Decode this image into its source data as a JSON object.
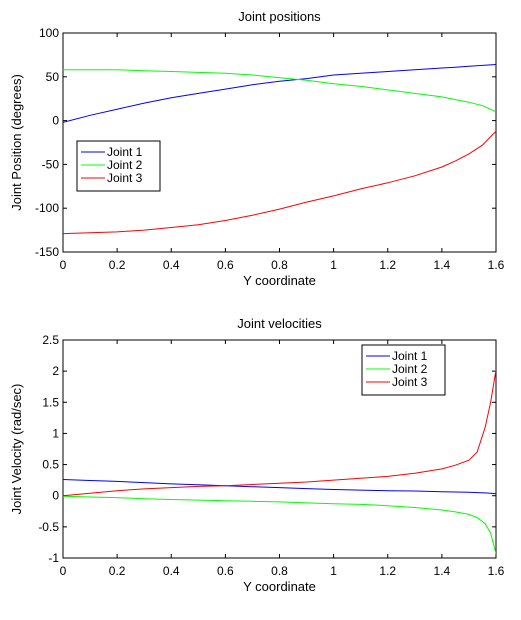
{
  "chart_data": [
    {
      "type": "line",
      "title": "Joint positions",
      "xlabel": "Y coordinate",
      "ylabel": "Joint Position (degrees)",
      "xlim": [
        0,
        1.6
      ],
      "ylim": [
        -150,
        100
      ],
      "xticks": [
        0,
        0.2,
        0.4,
        0.6,
        0.8,
        1,
        1.2,
        1.4,
        1.6
      ],
      "xtick_labels": [
        "0",
        "0.2",
        "0.4",
        "0.6",
        "0.8",
        "1",
        "1.2",
        "1.4",
        "1.6"
      ],
      "yticks": [
        -150,
        -100,
        -50,
        0,
        50,
        100
      ],
      "ytick_labels": [
        "-150",
        "-100",
        "-50",
        "0",
        "50",
        "100"
      ],
      "legend_position": "middle-left",
      "x": [
        0,
        0.1,
        0.2,
        0.3,
        0.4,
        0.5,
        0.6,
        0.7,
        0.8,
        0.9,
        1.0,
        1.1,
        1.2,
        1.3,
        1.4,
        1.45,
        1.5,
        1.55,
        1.6
      ],
      "series": [
        {
          "name": "Joint 1",
          "color": "#0000ff",
          "values": [
            -2,
            6,
            13,
            20,
            26,
            31,
            36,
            41,
            45,
            48,
            52,
            54,
            56,
            58,
            60,
            61,
            62,
            63,
            64
          ]
        },
        {
          "name": "Joint 2",
          "color": "#00ff00",
          "values": [
            58,
            58,
            58,
            57,
            56,
            55,
            54,
            52,
            49,
            46,
            42,
            39,
            35,
            31,
            27,
            24,
            21,
            17,
            10
          ]
        },
        {
          "name": "Joint 3",
          "color": "#ff0000",
          "values": [
            -129,
            -128,
            -127,
            -125,
            -122,
            -119,
            -114,
            -108,
            -101,
            -93,
            -86,
            -78,
            -71,
            -63,
            -53,
            -46,
            -38,
            -28,
            -12
          ]
        }
      ]
    },
    {
      "type": "line",
      "title": "Joint velocities",
      "xlabel": "Y coordinate",
      "ylabel": "Joint Velocity (rad/sec)",
      "xlim": [
        0,
        1.6
      ],
      "ylim": [
        -1,
        2.5
      ],
      "xticks": [
        0,
        0.2,
        0.4,
        0.6,
        0.8,
        1,
        1.2,
        1.4,
        1.6
      ],
      "xtick_labels": [
        "0",
        "0.2",
        "0.4",
        "0.6",
        "0.8",
        "1",
        "1.2",
        "1.4",
        "1.6"
      ],
      "yticks": [
        -1,
        -0.5,
        0,
        0.5,
        1,
        1.5,
        2,
        2.5
      ],
      "ytick_labels": [
        "-1",
        "-0.5",
        "0",
        "0.5",
        "1",
        "1.5",
        "2",
        "2.5"
      ],
      "legend_position": "top-right",
      "x": [
        0,
        0.1,
        0.2,
        0.3,
        0.4,
        0.5,
        0.6,
        0.7,
        0.8,
        0.9,
        1.0,
        1.1,
        1.2,
        1.3,
        1.4,
        1.45,
        1.5,
        1.53,
        1.56,
        1.58,
        1.6
      ],
      "series": [
        {
          "name": "Joint 1",
          "color": "#0000ff",
          "values": [
            0.26,
            0.245,
            0.23,
            0.21,
            0.19,
            0.175,
            0.16,
            0.145,
            0.13,
            0.115,
            0.1,
            0.09,
            0.08,
            0.075,
            0.065,
            0.06,
            0.055,
            0.05,
            0.045,
            0.04,
            0.03
          ]
        },
        {
          "name": "Joint 2",
          "color": "#00ff00",
          "values": [
            -0.01,
            -0.02,
            -0.03,
            -0.05,
            -0.06,
            -0.07,
            -0.08,
            -0.09,
            -0.1,
            -0.115,
            -0.13,
            -0.14,
            -0.16,
            -0.19,
            -0.23,
            -0.26,
            -0.3,
            -0.35,
            -0.45,
            -0.6,
            -0.93
          ]
        },
        {
          "name": "Joint 3",
          "color": "#ff0000",
          "values": [
            0,
            0.04,
            0.08,
            0.11,
            0.13,
            0.15,
            0.16,
            0.18,
            0.2,
            0.22,
            0.25,
            0.28,
            0.31,
            0.36,
            0.43,
            0.49,
            0.57,
            0.7,
            1.1,
            1.5,
            2.02
          ]
        }
      ]
    }
  ]
}
